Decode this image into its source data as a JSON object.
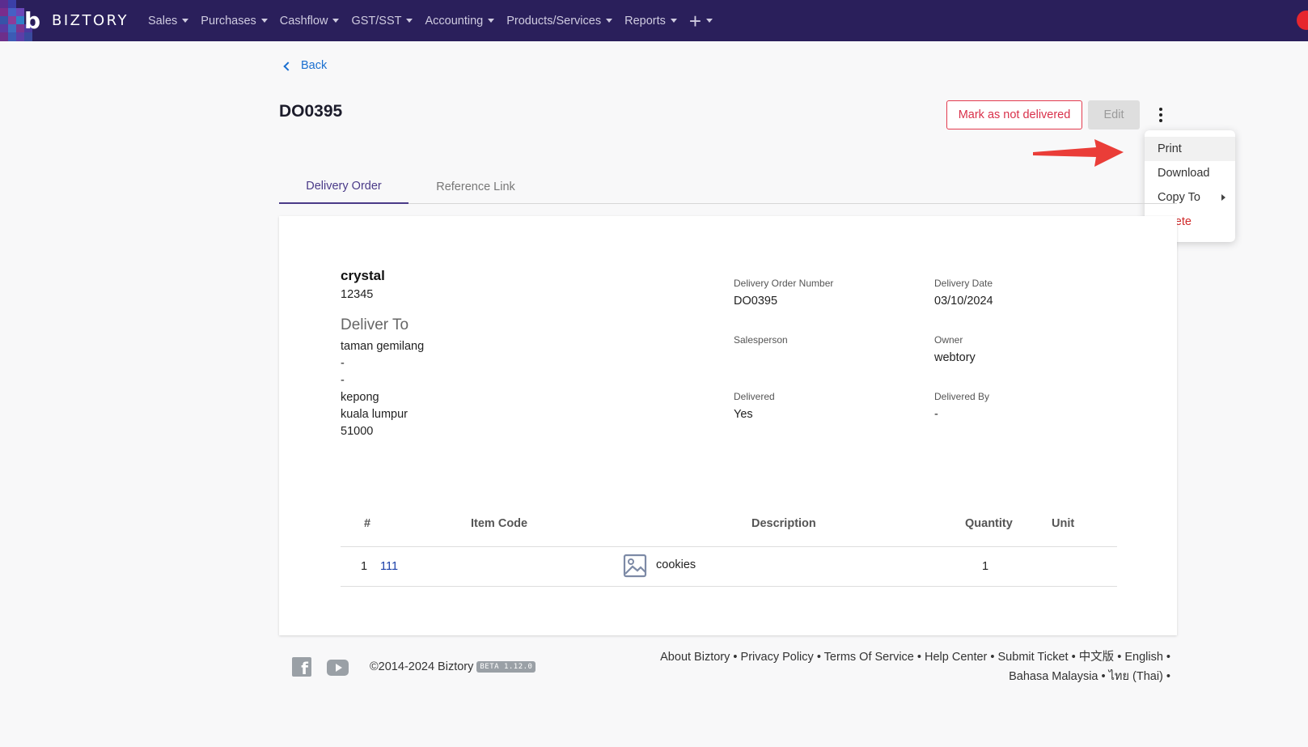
{
  "brand": {
    "name": "BIZTORY"
  },
  "nav": {
    "items": [
      "Sales",
      "Purchases",
      "Cashflow",
      "GST/SST",
      "Accounting",
      "Products/Services",
      "Reports"
    ],
    "plus_label": "+"
  },
  "back_label": "Back",
  "page_title": "DO0395",
  "actions": {
    "mark_label": "Mark as not delivered",
    "edit_label": "Edit"
  },
  "menu": {
    "items": [
      {
        "label": "Print"
      },
      {
        "label": "Download"
      },
      {
        "label": "Copy To"
      },
      {
        "label": "Delete"
      }
    ]
  },
  "tabs": [
    "Delivery Order",
    "Reference Link"
  ],
  "customer": {
    "name": "crystal",
    "code": "12345",
    "deliver_heading": "Deliver To",
    "address": [
      "taman gemilang",
      "-",
      "-",
      "kepong",
      "kuala lumpur",
      "51000"
    ]
  },
  "details": {
    "do_number_label": "Delivery Order Number",
    "do_number": "DO0395",
    "date_label": "Delivery Date",
    "date": "03/10/2024",
    "salesperson_label": "Salesperson",
    "salesperson": "",
    "owner_label": "Owner",
    "owner": "webtory",
    "delivered_label": "Delivered",
    "delivered": "Yes",
    "delivered_by_label": "Delivered By",
    "delivered_by": "-"
  },
  "table": {
    "headers": {
      "num": "#",
      "item_code": "Item Code",
      "description": "Description",
      "quantity": "Quantity",
      "unit": "Unit"
    },
    "rows": [
      {
        "num": "1",
        "item_code": "111",
        "description": "cookies",
        "quantity": "1",
        "unit": ""
      }
    ]
  },
  "footer": {
    "copyright": "©2014-2024 Biztory",
    "beta": "BETA 1.12.0",
    "links": [
      "About Biztory",
      "Privacy Policy",
      "Terms Of Service",
      "Help Center",
      "Submit Ticket",
      "中文版",
      "English",
      "Bahasa Malaysia",
      "ไทย (Thai)"
    ],
    "separator": "•"
  }
}
